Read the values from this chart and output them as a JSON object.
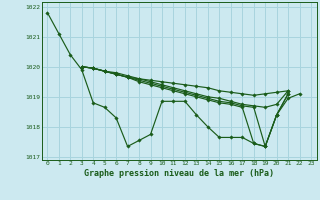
{
  "background_color": "#cce9f0",
  "grid_color": "#a8d4de",
  "line_color": "#1a5c1a",
  "xlim_min": -0.5,
  "xlim_max": 23.5,
  "ylim_min": 1016.9,
  "ylim_max": 1022.15,
  "yticks": [
    1017,
    1018,
    1019,
    1020,
    1021,
    1022
  ],
  "xticks": [
    0,
    1,
    2,
    3,
    4,
    5,
    6,
    7,
    8,
    9,
    10,
    11,
    12,
    13,
    14,
    15,
    16,
    17,
    18,
    19,
    20,
    21,
    22,
    23
  ],
  "xlabel": "Graphe pression niveau de la mer (hPa)",
  "series": [
    [
      1021.8,
      1021.1,
      1020.4,
      1019.9,
      1018.8,
      1018.65,
      1018.3,
      1017.35,
      1017.55,
      1017.75,
      1018.85,
      1018.85,
      1018.85,
      1018.4,
      1018.0,
      1017.65,
      1017.65,
      1017.65,
      1017.45,
      1017.35,
      1018.4,
      1018.95,
      1019.1,
      null
    ],
    [
      null,
      null,
      null,
      1020.0,
      1019.95,
      1019.85,
      1019.75,
      1019.65,
      1019.6,
      1019.55,
      1019.5,
      1019.45,
      1019.4,
      1019.35,
      1019.3,
      1019.2,
      1019.15,
      1019.1,
      1019.05,
      1019.1,
      1019.15,
      1019.2,
      null,
      null
    ],
    [
      null,
      null,
      null,
      1020.0,
      1019.95,
      1019.85,
      1019.8,
      1019.7,
      1019.6,
      1019.5,
      1019.4,
      1019.3,
      1019.2,
      1019.1,
      1019.0,
      1018.95,
      1018.85,
      1018.75,
      1018.7,
      1018.65,
      1018.75,
      1019.2,
      null,
      null
    ],
    [
      null,
      null,
      null,
      1020.0,
      1019.95,
      1019.85,
      1019.75,
      1019.65,
      1019.55,
      1019.45,
      1019.35,
      1019.25,
      1019.15,
      1019.05,
      1018.95,
      1018.85,
      1018.8,
      1018.7,
      1018.65,
      1017.35,
      1018.4,
      1019.1,
      null,
      null
    ],
    [
      null,
      null,
      null,
      1020.0,
      1019.95,
      1019.85,
      1019.75,
      1019.65,
      1019.5,
      1019.4,
      1019.3,
      1019.2,
      1019.1,
      1019.0,
      1018.9,
      1018.8,
      1018.75,
      1018.65,
      1017.45,
      1017.35,
      1018.4,
      1019.1,
      null,
      null
    ]
  ]
}
